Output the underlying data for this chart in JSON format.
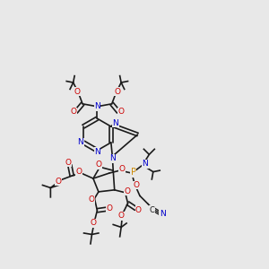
{
  "bg_color": "#e8e8e8",
  "atom_colors": {
    "C": "#1a1a1a",
    "N": "#0000cc",
    "O": "#cc0000",
    "P": "#cc8800",
    "CN_label": "#1a1a1a"
  },
  "line_color": "#1a1a1a",
  "line_width": 1.2
}
